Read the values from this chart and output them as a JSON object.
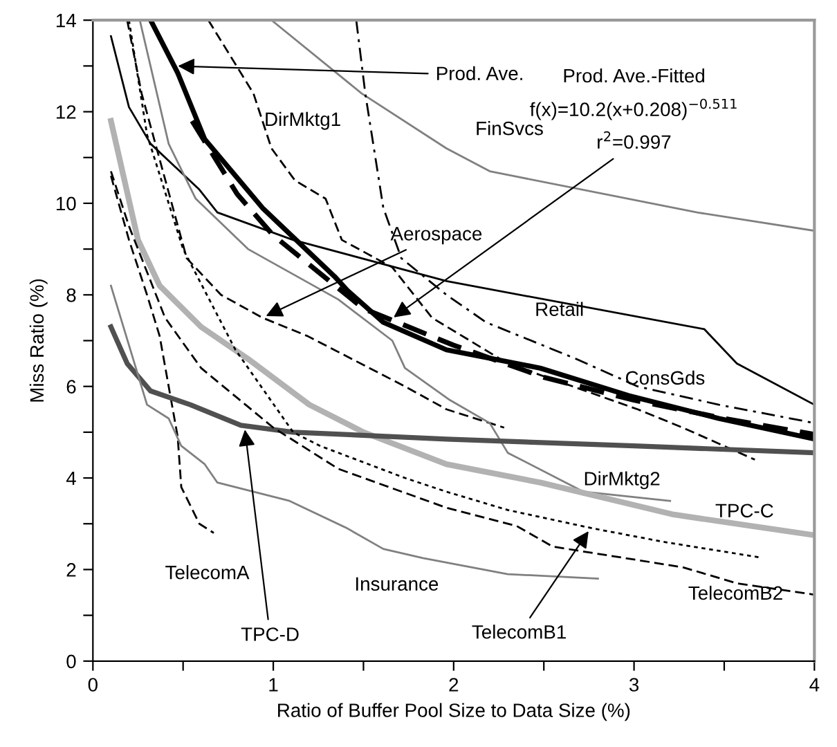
{
  "chart_data": {
    "type": "line",
    "xlabel": "Ratio of Buffer Pool Size to Data Size (%)",
    "ylabel": "Miss Ratio (%)",
    "xlim": [
      0,
      4
    ],
    "xticks": [
      0,
      {
        "value": 0.5,
        "label": null
      },
      1,
      {
        "value": 1.5,
        "label": null
      },
      2,
      {
        "value": 2.5,
        "label": null
      },
      3,
      {
        "value": 3.5,
        "label": null
      },
      4
    ],
    "ylim": [
      0,
      14
    ],
    "yticks": [
      0,
      {
        "value": 1,
        "label": null
      },
      2,
      {
        "value": 3,
        "label": null
      },
      4,
      {
        "value": 5,
        "label": null
      },
      6,
      {
        "value": 7,
        "label": null
      },
      8,
      {
        "value": 9,
        "label": null
      },
      10,
      {
        "value": 11,
        "label": null
      },
      12,
      {
        "value": 13,
        "label": null
      },
      14
    ],
    "grid": false,
    "legend": false,
    "marker": "none",
    "annotations": [
      {
        "text": "Prod. Ave.",
        "x": 0.45,
        "y": 13.0
      },
      "Prod. Ave.-Fitted",
      "f(x)=10.2(x+0.208)$^{−0.511}$",
      {
        "text": "r$^{2}$=0.997",
        "x": 1.65,
        "y": 7.46
      },
      {
        "text": "Aerospace",
        "x": 0.94,
        "y": 7.5
      },
      {
        "text": "TPC-D",
        "x": 0.84,
        "y": 5.14
      },
      {
        "text": "TelecomB1",
        "x": 2.76,
        "y": 2.91
      }
    ],
    "series": [
      {
        "color": "#000000",
        "line_style": "solid",
        "x": [
          0.32,
          0.47,
          0.62,
          0.94,
          1.34,
          1.41,
          1.61,
          1.96,
          2.48,
          2.97,
          3.47,
          4.0
        ],
        "values": [
          14,
          12.85,
          11.4,
          9.9,
          8.4,
          8.1,
          7.4,
          6.8,
          6.4,
          5.8,
          5.3,
          4.85
        ]
      },
      {
        "color": "#000000",
        "line_style": "dashed",
        "x": [
          0.55,
          0.8,
          1.0,
          1.5,
          2.0,
          2.5,
          3.0,
          3.5,
          4.0
        ],
        "values": [
          11.8,
          10.2,
          9.3,
          7.7,
          6.9,
          6.2,
          5.7,
          5.3,
          4.95
        ]
      },
      {
        "name": "DirMktg1",
        "color": "#000000",
        "line_style": "dashed",
        "x": [
          0.64,
          0.89,
          0.99,
          1.12,
          1.29,
          1.38,
          1.66,
          1.88,
          2.3,
          3.02,
          3.27,
          3.67
        ],
        "values": [
          14,
          12.4,
          11.2,
          10.5,
          10.1,
          9.2,
          8.6,
          7.5,
          6.5,
          5.5,
          5.1,
          4.4
        ]
      },
      {
        "name": "FinSvcs",
        "color": "#808080",
        "line_style": "solid",
        "x": [
          0.99,
          1.49,
          1.96,
          2.2,
          3.35,
          4.0
        ],
        "values": [
          14,
          12.4,
          11.2,
          10.7,
          9.8,
          9.4
        ]
      },
      {
        "color": "#000000",
        "line_style": "dashed",
        "x": [
          0.19,
          0.27,
          0.52,
          0.71,
          0.94,
          1.19,
          1.73,
          1.96,
          2.28
        ],
        "values": [
          14,
          12.4,
          8.8,
          8.0,
          7.5,
          7.1,
          6.0,
          5.5,
          5.1
        ]
      },
      {
        "name": "Retail",
        "color": "#000000",
        "line_style": "solid",
        "x": [
          0.1,
          0.2,
          0.32,
          0.59,
          0.69,
          1.11,
          1.96,
          3.39,
          3.57,
          4.0
        ],
        "values": [
          13.65,
          12.1,
          11.3,
          10.3,
          9.8,
          9.2,
          8.3,
          7.25,
          6.5,
          5.6
        ]
      },
      {
        "name": "ConsGds",
        "color": "#000000",
        "line_style": "dashdot",
        "x": [
          1.46,
          1.51,
          1.61,
          1.71,
          1.96,
          2.18,
          2.68,
          3.02,
          3.47,
          4.0
        ],
        "values": [
          14,
          12.4,
          9.9,
          8.8,
          8.0,
          7.4,
          6.6,
          6.0,
          5.6,
          5.2
        ]
      },
      {
        "name": "DirMktg2",
        "color": "#808080",
        "line_style": "solid",
        "x": [
          0.26,
          0.42,
          0.57,
          0.86,
          1.36,
          1.66,
          1.73,
          1.98,
          2.2,
          2.3,
          2.72,
          3.2
        ],
        "values": [
          14,
          11.3,
          10.1,
          9.0,
          7.9,
          7.0,
          6.4,
          5.7,
          5.2,
          4.55,
          3.7,
          3.5
        ]
      },
      {
        "name": "TPC-C",
        "color": "#b2b2b2",
        "line_style": "solid",
        "x": [
          0.1,
          0.25,
          0.37,
          0.6,
          0.86,
          1.2,
          1.5,
          1.96,
          2.48,
          3.22,
          4.0
        ],
        "values": [
          11.8,
          9.2,
          8.2,
          7.3,
          6.6,
          5.6,
          5.0,
          4.3,
          3.9,
          3.2,
          2.75
        ]
      },
      {
        "name": "TelecomA",
        "color": "#000000",
        "line_style": "dashed",
        "x": [
          0.1,
          0.2,
          0.3,
          0.37,
          0.47,
          0.49,
          0.59,
          0.67
        ],
        "values": [
          10.6,
          9.2,
          8.0,
          7.1,
          4.9,
          3.8,
          3.0,
          2.8
        ]
      },
      {
        "color": "#505050",
        "line_style": "solid",
        "x": [
          0.1,
          0.19,
          0.32,
          0.54,
          0.82,
          1.11,
          1.96,
          3.0,
          4.0
        ],
        "values": [
          7.3,
          6.5,
          5.9,
          5.6,
          5.15,
          5.0,
          4.85,
          4.7,
          4.55
        ]
      },
      {
        "name": "Insurance",
        "color": "#808080",
        "line_style": "solid",
        "x": [
          0.1,
          0.3,
          0.42,
          0.49,
          0.62,
          0.69,
          1.09,
          1.41,
          1.61,
          1.83,
          2.3,
          2.8
        ],
        "values": [
          8.2,
          5.6,
          5.3,
          4.7,
          4.3,
          3.9,
          3.5,
          2.9,
          2.45,
          2.25,
          1.9,
          1.8
        ]
      },
      {
        "color": "#000000",
        "line_style": "dotted",
        "x": [
          0.2,
          0.3,
          0.5,
          0.79,
          1.11,
          1.26,
          1.73,
          1.96,
          2.3,
          2.77,
          3.17,
          3.69
        ],
        "values": [
          14,
          11.5,
          9.0,
          6.8,
          5.0,
          4.7,
          4.0,
          3.7,
          3.3,
          2.9,
          2.6,
          2.27
        ]
      },
      {
        "name": "TelecomB2",
        "color": "#000000",
        "line_style": "dashed",
        "x": [
          0.1,
          0.2,
          0.4,
          0.6,
          1.0,
          1.36,
          1.96,
          2.35,
          2.55,
          3.27,
          3.57,
          4.0
        ],
        "values": [
          10.7,
          9.5,
          7.5,
          6.4,
          5.1,
          4.2,
          3.35,
          2.95,
          2.5,
          2.05,
          1.7,
          1.45
        ]
      }
    ]
  }
}
